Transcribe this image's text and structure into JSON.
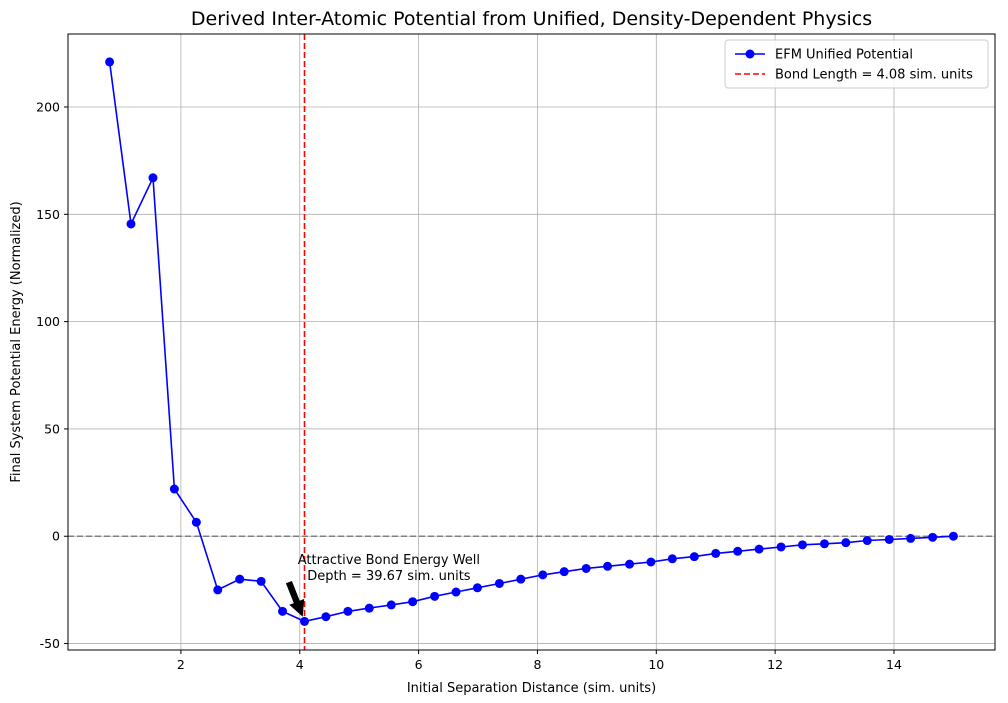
{
  "chart_data": {
    "type": "line",
    "title": "Derived Inter-Atomic Potential from Unified, Density-Dependent Physics",
    "xlabel": "Initial Separation Distance (sim. units)",
    "ylabel": "Final System Potential Energy (Normalized)",
    "xlim": [
      0.1,
      15.7
    ],
    "ylim": [
      -53,
      234
    ],
    "xticks": [
      2,
      4,
      6,
      8,
      10,
      12,
      14
    ],
    "yticks": [
      -50,
      0,
      50,
      100,
      150,
      200
    ],
    "grid": true,
    "legend_position": "top-right",
    "series": [
      {
        "name": "EFM Unified Potential",
        "color": "#0000ff",
        "marker": "circle",
        "x": [
          0.8,
          1.16,
          1.53,
          1.89,
          2.26,
          2.62,
          2.99,
          3.35,
          3.71,
          4.08,
          4.44,
          4.81,
          5.17,
          5.54,
          5.9,
          6.27,
          6.63,
          6.99,
          7.36,
          7.72,
          8.09,
          8.45,
          8.82,
          9.18,
          9.55,
          9.91,
          10.27,
          10.64,
          11.0,
          11.37,
          11.73,
          12.1,
          12.46,
          12.83,
          13.19,
          13.55,
          13.92,
          14.28,
          14.65,
          15.0
        ],
        "y": [
          221,
          145.5,
          167,
          22,
          6.5,
          -25,
          -20,
          -21,
          -35,
          -39.67,
          -37.5,
          -35,
          -33.5,
          -32,
          -30.5,
          -28,
          -26,
          -24,
          -22,
          -20,
          -18,
          -16.5,
          -15,
          -14,
          -13,
          -12,
          -10.5,
          -9.5,
          -8,
          -7,
          -6,
          -5,
          -4,
          -3.5,
          -3,
          -2,
          -1.5,
          -1,
          -0.5,
          0
        ]
      }
    ],
    "reference_lines": [
      {
        "orientation": "vertical",
        "x": 4.08,
        "label": "Bond Length = 4.08 sim. units",
        "color": "#ff0000",
        "style": "dashed"
      },
      {
        "orientation": "horizontal",
        "y": 0,
        "color": "#808080",
        "style": "dashed"
      }
    ],
    "annotation": {
      "lines": [
        "Attractive Bond Energy Well",
        "Depth = 39.67 sim. units"
      ],
      "target": [
        4.08,
        -39.67
      ],
      "text_at": [
        5.5,
        -13
      ]
    }
  }
}
